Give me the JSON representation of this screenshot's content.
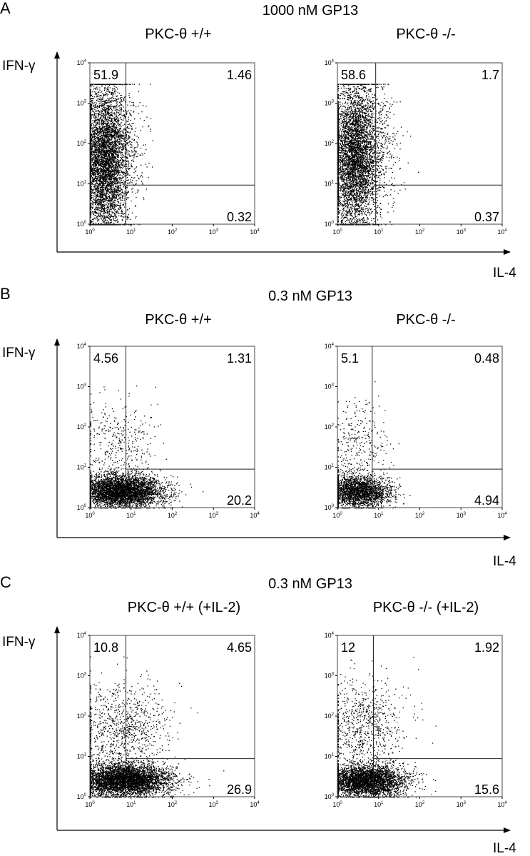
{
  "figure": {
    "axis_label_y": "IFN-γ",
    "axis_label_x": "IL-4",
    "ticks": [
      {
        "base": "10",
        "exp": "0"
      },
      {
        "base": "10",
        "exp": "1"
      },
      {
        "base": "10",
        "exp": "2"
      },
      {
        "base": "10",
        "exp": "3"
      },
      {
        "base": "10",
        "exp": "4"
      }
    ]
  },
  "chart_data": [
    {
      "type": "scatter",
      "panel": "A",
      "title": "1000 nM GP13",
      "subplot": "PKC-θ +/+",
      "xlabel": "IL-4",
      "ylabel": "IFN-γ",
      "xscale": "log",
      "yscale": "log",
      "xlim": [
        1,
        10000
      ],
      "ylim": [
        1,
        10000
      ],
      "gate": {
        "x": 7.5,
        "y": 9.3
      },
      "quadrants": {
        "upper_left": "51.9",
        "upper_right": "1.46",
        "lower_right": "0.32"
      },
      "populations": [
        {
          "name": "",
          "n": 5200,
          "seed": 11,
          "x_center": 2.3,
          "x_sd": 0.28,
          "y_center": 40,
          "y_sd": 0.95,
          "ymin": 1,
          "ymax": 3000
        },
        {
          "name": "",
          "n": 180,
          "seed": 12,
          "x_center": 10,
          "x_sd": 0.22,
          "y_center": 80,
          "y_sd": 0.7,
          "ymin": 1,
          "ymax": 3000
        }
      ]
    },
    {
      "type": "scatter",
      "panel": "A",
      "title": "1000 nM GP13",
      "subplot": "PKC-θ -/-",
      "xlabel": "IL-4",
      "ylabel": "IFN-γ",
      "xscale": "log",
      "yscale": "log",
      "xlim": [
        1,
        10000
      ],
      "ylim": [
        1,
        10000
      ],
      "gate": {
        "x": 8.5,
        "y": 9.3
      },
      "quadrants": {
        "upper_left": "58.6",
        "upper_right": "1.7",
        "lower_right": "0.37"
      },
      "populations": [
        {
          "name": "",
          "n": 5000,
          "seed": 21,
          "x_center": 2.6,
          "x_sd": 0.3,
          "y_center": 50,
          "y_sd": 0.95,
          "ymin": 1,
          "ymax": 3000
        },
        {
          "name": "",
          "n": 220,
          "seed": 22,
          "x_center": 12,
          "x_sd": 0.28,
          "y_center": 90,
          "y_sd": 0.7,
          "ymin": 1,
          "ymax": 3000
        }
      ]
    },
    {
      "type": "scatter",
      "panel": "B",
      "title": "0.3 nM GP13",
      "subplot": "PKC-θ +/+",
      "xlabel": "IL-4",
      "ylabel": "IFN-γ",
      "xscale": "log",
      "yscale": "log",
      "xlim": [
        1,
        10000
      ],
      "ylim": [
        1,
        10000
      ],
      "gate": {
        "x": 7.5,
        "y": 9.0
      },
      "quadrants": {
        "upper_left": "4.56",
        "upper_right": "1.31",
        "lower_right": "20.2"
      },
      "populations": [
        {
          "name": "",
          "n": 4200,
          "seed": 31,
          "x_center": 6,
          "x_sd": 0.5,
          "y_center": 2.6,
          "y_sd": 0.2,
          "ymin": 1,
          "ymax": 3000
        },
        {
          "name": "",
          "n": 380,
          "seed": 32,
          "x_center": 4.5,
          "x_sd": 0.45,
          "y_center": 40,
          "y_sd": 0.55,
          "ymin": 1,
          "ymax": 3000
        }
      ]
    },
    {
      "type": "scatter",
      "panel": "B",
      "title": "0.3 nM GP13",
      "subplot": "PKC-θ -/-",
      "xlabel": "IL-4",
      "ylabel": "IFN-γ",
      "xscale": "log",
      "yscale": "log",
      "xlim": [
        1,
        10000
      ],
      "ylim": [
        1,
        10000
      ],
      "gate": {
        "x": 7.0,
        "y": 9.0
      },
      "quadrants": {
        "upper_left": "5.1",
        "upper_right": "0.48",
        "lower_right": "4.94"
      },
      "populations": [
        {
          "name": "",
          "n": 2400,
          "seed": 41,
          "x_center": 3.2,
          "x_sd": 0.38,
          "y_center": 2.5,
          "y_sd": 0.2,
          "ymin": 1,
          "ymax": 3000
        },
        {
          "name": "",
          "n": 320,
          "seed": 42,
          "x_center": 3.2,
          "x_sd": 0.35,
          "y_center": 35,
          "y_sd": 0.55,
          "ymin": 1,
          "ymax": 3000
        }
      ]
    },
    {
      "type": "scatter",
      "panel": "C",
      "title": "0.3 nM GP13",
      "subplot": "PKC-θ +/+ (+IL-2)",
      "xlabel": "IL-4",
      "ylabel": "IFN-γ",
      "xscale": "log",
      "yscale": "log",
      "xlim": [
        1,
        10000
      ],
      "ylim": [
        1,
        10000
      ],
      "gate": {
        "x": 7.5,
        "y": 8.8
      },
      "quadrants": {
        "upper_left": "10.8",
        "upper_right": "4.65",
        "lower_right": "26.9"
      },
      "populations": [
        {
          "name": "",
          "n": 4600,
          "seed": 51,
          "x_center": 7,
          "x_sd": 0.55,
          "y_center": 2.6,
          "y_sd": 0.2,
          "ymin": 1,
          "ymax": 3000
        },
        {
          "name": "",
          "n": 950,
          "seed": 52,
          "x_center": 6,
          "x_sd": 0.55,
          "y_center": 50,
          "y_sd": 0.6,
          "ymin": 1,
          "ymax": 3000
        }
      ]
    },
    {
      "type": "scatter",
      "panel": "C",
      "title": "0.3 nM GP13",
      "subplot": "PKC-θ -/- (+IL-2)",
      "xlabel": "IL-4",
      "ylabel": "IFN-γ",
      "xscale": "log",
      "yscale": "log",
      "xlim": [
        1,
        10000
      ],
      "ylim": [
        1,
        10000
      ],
      "gate": {
        "x": 7.5,
        "y": 8.8
      },
      "quadrants": {
        "upper_left": "12",
        "upper_right": "1.92",
        "lower_right": "15.6"
      },
      "populations": [
        {
          "name": "",
          "n": 3600,
          "seed": 61,
          "x_center": 5,
          "x_sd": 0.5,
          "y_center": 2.5,
          "y_sd": 0.2,
          "ymin": 1,
          "ymax": 3000
        },
        {
          "name": "",
          "n": 800,
          "seed": 62,
          "x_center": 4,
          "x_sd": 0.5,
          "y_center": 50,
          "y_sd": 0.6,
          "ymin": 1,
          "ymax": 3000
        }
      ]
    }
  ]
}
